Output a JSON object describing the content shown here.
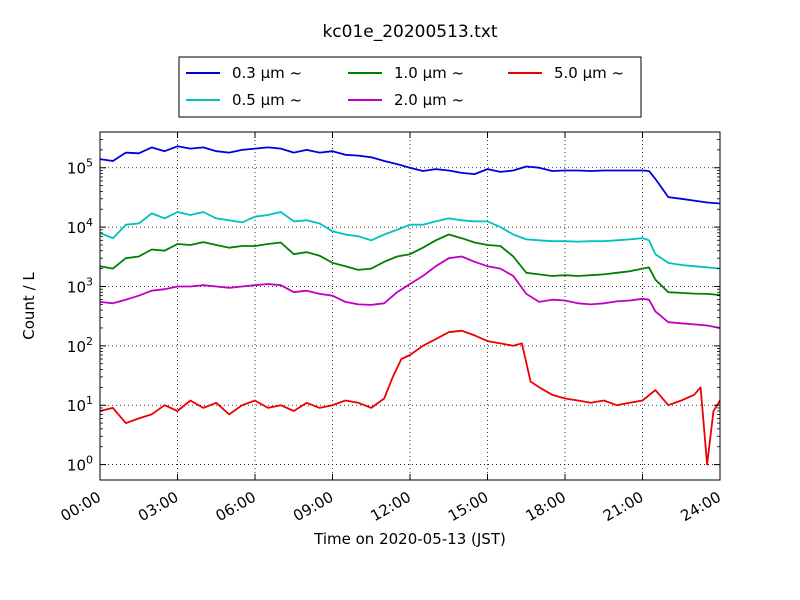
{
  "chart_data": {
    "type": "line",
    "title": "kc01e_20200513.txt",
    "xlabel": "Time on 2020-05-13 (JST)",
    "ylabel": "Count / L",
    "yscale": "log",
    "xlim": [
      "00:00",
      "24:00"
    ],
    "ylim": [
      0.55,
      400000
    ],
    "grid": true,
    "legend_position": "top-center, above plot",
    "x_ticks": [
      "00:00",
      "03:00",
      "06:00",
      "09:00",
      "12:00",
      "15:00",
      "18:00",
      "21:00",
      "24:00"
    ],
    "y_ticks": [
      1,
      10,
      100,
      1000,
      10000,
      100000
    ],
    "series": [
      {
        "name": "0.3 μm ~",
        "color": "#0000dd",
        "x": [
          "00:00",
          "00:30",
          "01:00",
          "01:30",
          "02:00",
          "02:30",
          "03:00",
          "03:30",
          "04:00",
          "04:30",
          "05:00",
          "05:30",
          "06:00",
          "06:30",
          "07:00",
          "07:30",
          "08:00",
          "08:30",
          "09:00",
          "09:30",
          "10:00",
          "10:30",
          "11:00",
          "11:30",
          "12:00",
          "12:30",
          "13:00",
          "13:30",
          "14:00",
          "14:30",
          "15:00",
          "15:30",
          "16:00",
          "16:30",
          "17:00",
          "17:30",
          "18:00",
          "18:30",
          "19:00",
          "19:30",
          "20:00",
          "20:30",
          "21:00",
          "21:15",
          "21:30",
          "22:00",
          "22:30",
          "23:00",
          "23:30",
          "24:00"
        ],
        "values": [
          140000,
          130000,
          180000,
          175000,
          220000,
          190000,
          230000,
          210000,
          220000,
          190000,
          180000,
          200000,
          210000,
          220000,
          210000,
          180000,
          200000,
          180000,
          190000,
          165000,
          160000,
          150000,
          130000,
          115000,
          100000,
          88000,
          95000,
          90000,
          82000,
          78000,
          95000,
          85000,
          90000,
          105000,
          100000,
          88000,
          90000,
          90000,
          88000,
          90000,
          90000,
          90000,
          90000,
          88000,
          65000,
          32000,
          30000,
          28000,
          26000,
          25000
        ]
      },
      {
        "name": "0.5 μm ~",
        "color": "#00c0c0",
        "x": [
          "00:00",
          "00:30",
          "01:00",
          "01:30",
          "02:00",
          "02:30",
          "03:00",
          "03:30",
          "04:00",
          "04:30",
          "05:00",
          "05:30",
          "06:00",
          "06:30",
          "07:00",
          "07:30",
          "08:00",
          "08:30",
          "09:00",
          "09:30",
          "10:00",
          "10:30",
          "11:00",
          "11:30",
          "12:00",
          "12:30",
          "13:00",
          "13:30",
          "14:00",
          "14:30",
          "15:00",
          "15:30",
          "16:00",
          "16:30",
          "17:00",
          "17:30",
          "18:00",
          "18:30",
          "19:00",
          "19:30",
          "20:00",
          "20:30",
          "21:00",
          "21:15",
          "21:30",
          "22:00",
          "22:30",
          "23:00",
          "23:30",
          "24:00"
        ],
        "values": [
          8000,
          6500,
          11000,
          11500,
          17000,
          14000,
          18000,
          16000,
          18000,
          14000,
          13000,
          12000,
          15000,
          16000,
          18000,
          12500,
          13000,
          11500,
          8500,
          7500,
          7000,
          6000,
          7500,
          9000,
          11000,
          11000,
          12500,
          14000,
          13000,
          12500,
          12500,
          10000,
          7500,
          6200,
          6000,
          5800,
          5800,
          5700,
          5800,
          5800,
          6000,
          6200,
          6500,
          6000,
          3500,
          2500,
          2300,
          2200,
          2100,
          2000
        ]
      },
      {
        "name": "1.0 μm ~",
        "color": "#008000",
        "x": [
          "00:00",
          "00:30",
          "01:00",
          "01:30",
          "02:00",
          "02:30",
          "03:00",
          "03:30",
          "04:00",
          "04:30",
          "05:00",
          "05:30",
          "06:00",
          "06:30",
          "07:00",
          "07:30",
          "08:00",
          "08:30",
          "09:00",
          "09:30",
          "10:00",
          "10:30",
          "11:00",
          "11:30",
          "12:00",
          "12:30",
          "13:00",
          "13:30",
          "14:00",
          "14:30",
          "15:00",
          "15:30",
          "16:00",
          "16:30",
          "17:00",
          "17:30",
          "18:00",
          "18:30",
          "19:00",
          "19:30",
          "20:00",
          "20:30",
          "21:00",
          "21:15",
          "21:30",
          "22:00",
          "22:30",
          "23:00",
          "23:30",
          "24:00"
        ],
        "values": [
          2200,
          2000,
          3000,
          3200,
          4200,
          4000,
          5200,
          5000,
          5600,
          5000,
          4500,
          4800,
          4800,
          5200,
          5500,
          3500,
          3800,
          3300,
          2500,
          2200,
          1900,
          2000,
          2600,
          3200,
          3500,
          4500,
          6000,
          7500,
          6500,
          5500,
          5000,
          4800,
          3200,
          1700,
          1600,
          1500,
          1550,
          1500,
          1550,
          1600,
          1700,
          1800,
          2000,
          2100,
          1300,
          800,
          780,
          760,
          750,
          720
        ]
      },
      {
        "name": "2.0 μm ~",
        "color": "#c000c0",
        "x": [
          "00:00",
          "00:30",
          "01:00",
          "01:30",
          "02:00",
          "02:30",
          "03:00",
          "03:30",
          "04:00",
          "04:30",
          "05:00",
          "05:30",
          "06:00",
          "06:30",
          "07:00",
          "07:30",
          "08:00",
          "08:30",
          "09:00",
          "09:30",
          "10:00",
          "10:30",
          "11:00",
          "11:30",
          "12:00",
          "12:30",
          "13:00",
          "13:30",
          "14:00",
          "14:30",
          "15:00",
          "15:30",
          "16:00",
          "16:30",
          "17:00",
          "17:30",
          "18:00",
          "18:30",
          "19:00",
          "19:30",
          "20:00",
          "20:30",
          "21:00",
          "21:15",
          "21:30",
          "22:00",
          "22:30",
          "23:00",
          "23:30",
          "24:00"
        ],
        "values": [
          550,
          520,
          600,
          700,
          850,
          900,
          1000,
          1000,
          1050,
          1000,
          950,
          1000,
          1050,
          1100,
          1050,
          800,
          850,
          750,
          700,
          550,
          500,
          490,
          520,
          800,
          1100,
          1500,
          2200,
          3000,
          3200,
          2600,
          2200,
          2000,
          1500,
          750,
          550,
          600,
          580,
          520,
          500,
          520,
          560,
          580,
          620,
          600,
          380,
          250,
          240,
          230,
          220,
          200
        ]
      },
      {
        "name": "5.0 μm ~",
        "color": "#ee0000",
        "x": [
          "00:00",
          "00:30",
          "01:00",
          "01:30",
          "02:00",
          "02:30",
          "03:00",
          "03:30",
          "04:00",
          "04:30",
          "05:00",
          "05:30",
          "06:00",
          "06:30",
          "07:00",
          "07:30",
          "08:00",
          "08:30",
          "09:00",
          "09:30",
          "10:00",
          "10:30",
          "11:00",
          "11:20",
          "11:40",
          "12:00",
          "12:30",
          "13:00",
          "13:30",
          "14:00",
          "14:30",
          "15:00",
          "15:30",
          "16:00",
          "16:20",
          "16:40",
          "17:00",
          "17:30",
          "18:00",
          "18:30",
          "19:00",
          "19:30",
          "20:00",
          "20:30",
          "21:00",
          "21:30",
          "22:00",
          "22:30",
          "23:00",
          "23:15",
          "23:30",
          "23:45",
          "24:00"
        ],
        "values": [
          8,
          9,
          5,
          6,
          7,
          10,
          8,
          12,
          9,
          11,
          7,
          10,
          12,
          9,
          10,
          8,
          11,
          9,
          10,
          12,
          11,
          9,
          13,
          30,
          60,
          70,
          100,
          130,
          170,
          180,
          150,
          120,
          110,
          100,
          110,
          25,
          20,
          15,
          13,
          12,
          11,
          12,
          10,
          11,
          12,
          18,
          10,
          12,
          15,
          20,
          1,
          8,
          12
        ]
      }
    ]
  }
}
